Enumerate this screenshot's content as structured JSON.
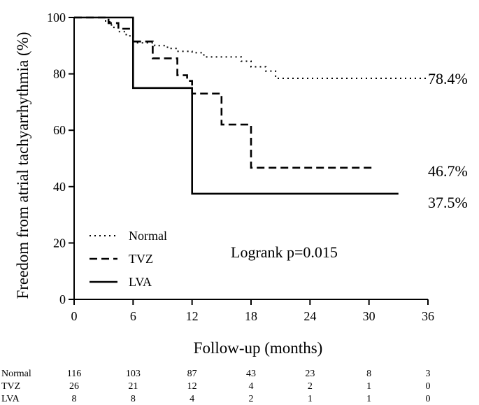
{
  "chart_data": {
    "type": "line",
    "title": "",
    "xlabel": "Follow-up (months)",
    "ylabel": "Freedom from atrial tachyarrhythmia (%)",
    "xlim": [
      0,
      36
    ],
    "ylim": [
      0,
      100
    ],
    "xticks": [
      "0",
      "6",
      "12",
      "18",
      "24",
      "30",
      "36"
    ],
    "yticks": [
      "0",
      "20",
      "40",
      "60",
      "80",
      "100"
    ],
    "grid": false,
    "legend": "bottom-left",
    "annotation": "Logrank p=0.015",
    "series": [
      {
        "name": "Normal",
        "style": "dotted",
        "end_label": "78.4%",
        "x": [
          0,
          3.2,
          3.8,
          4.5,
          5.3,
          6,
          7.2,
          8.2,
          9.5,
          10.5,
          12,
          13.2,
          14,
          16,
          17,
          18,
          19.5,
          20.5,
          25,
          30,
          36
        ],
        "y": [
          100,
          98.5,
          96.5,
          95,
          93.5,
          91,
          91,
          90,
          89,
          88,
          87.5,
          86,
          86,
          86,
          84.5,
          82.5,
          81,
          78.4,
          78.4,
          78.4,
          78.4
        ]
      },
      {
        "name": "TVZ",
        "style": "dashed",
        "end_label": "46.7%",
        "x": [
          0,
          3,
          3.5,
          4.5,
          6,
          8,
          10.5,
          11.5,
          12,
          15,
          18,
          30.5
        ],
        "y": [
          100,
          100,
          98,
          96,
          91.5,
          85.5,
          79.5,
          77.5,
          73,
          62,
          46.7,
          46.7
        ]
      },
      {
        "name": "LVA",
        "style": "solid",
        "end_label": "37.5%",
        "x": [
          0,
          6,
          12,
          33
        ],
        "y": [
          100,
          75,
          37.5,
          37.5
        ]
      }
    ],
    "risk_table": {
      "times": [
        0,
        6,
        12,
        18,
        24,
        30,
        36
      ],
      "rows": [
        {
          "name": "Normal",
          "values": [
            "116",
            "103",
            "87",
            "43",
            "23",
            "8",
            "3"
          ]
        },
        {
          "name": "TVZ",
          "values": [
            "26",
            "21",
            "12",
            "4",
            "2",
            "1",
            "0"
          ]
        },
        {
          "name": "LVA",
          "values": [
            "8",
            "8",
            "4",
            "2",
            "1",
            "1",
            "0"
          ]
        }
      ]
    }
  }
}
